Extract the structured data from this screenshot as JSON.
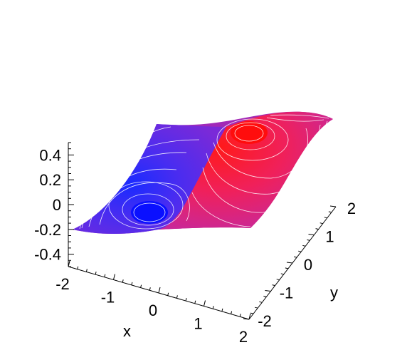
{
  "chart_data": {
    "type": "surface3d",
    "function_samples": {
      "x": [
        -2,
        -1,
        0,
        1,
        2
      ],
      "y": [
        -2,
        -1,
        0,
        1,
        2
      ],
      "z_min_point": {
        "x": -0.7,
        "y": -0.7,
        "z": -0.2
      },
      "z_max_point": {
        "x": 0.7,
        "y": 0.7,
        "z": 0.2
      }
    },
    "axes": {
      "x": {
        "label": "x",
        "range": [
          -2,
          2
        ],
        "ticks": [
          "-2",
          "-1",
          "0",
          "1",
          "2"
        ]
      },
      "y": {
        "label": "y",
        "range": [
          -2,
          2
        ],
        "ticks": [
          "-2",
          "-1",
          "0",
          "1",
          "2"
        ]
      },
      "z": {
        "label": "",
        "range": [
          -0.5,
          0.5
        ],
        "ticks": [
          "-0.4",
          "-0.2",
          "0",
          "0.2",
          "0.4"
        ]
      }
    },
    "colors": {
      "low": "#0000ff",
      "high": "#ff0000",
      "contour": "#ffffff"
    },
    "grid": false,
    "legend": "none"
  }
}
